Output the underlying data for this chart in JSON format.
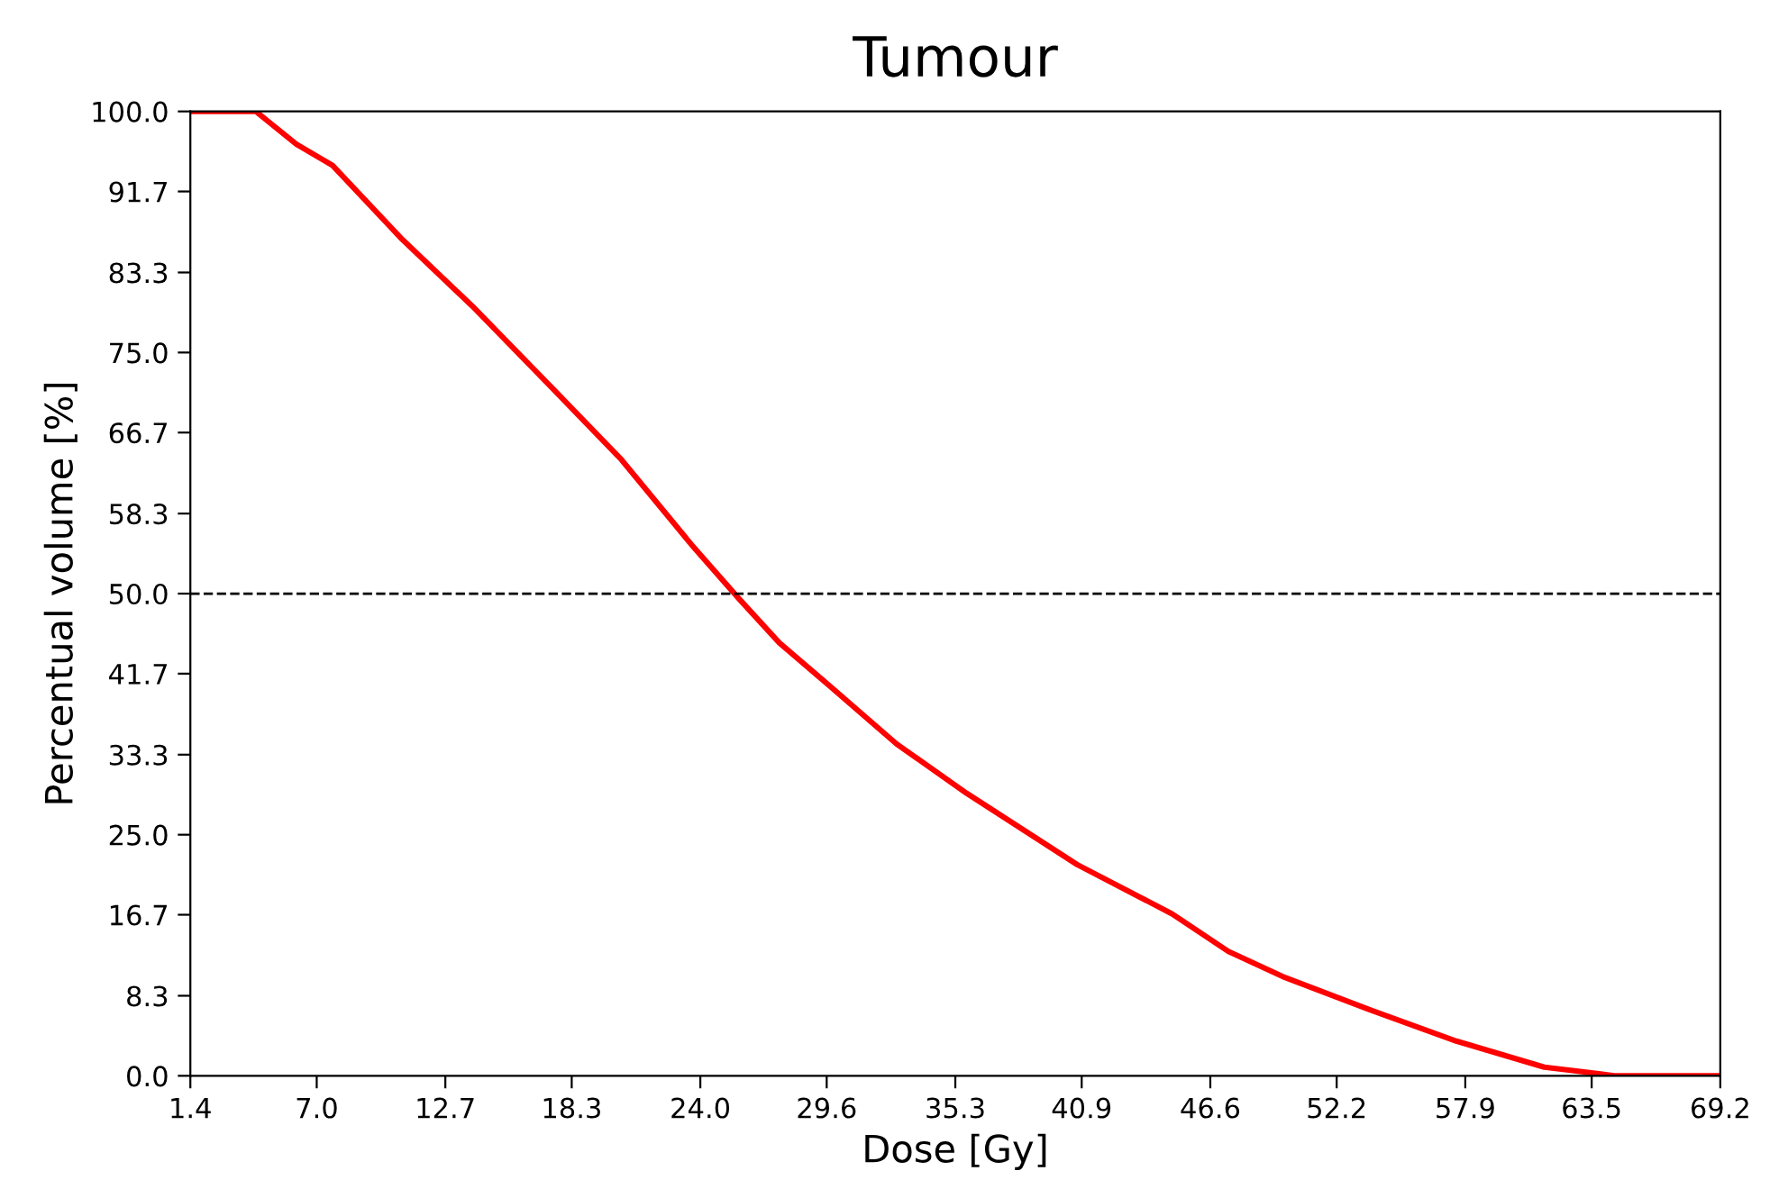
{
  "chart_data": {
    "type": "line",
    "title": "Tumour",
    "xlabel": "Dose [Gy]",
    "ylabel": "Percentual volume [%]",
    "series": [
      {
        "color": "#ff0000",
        "x": [
          1.4,
          4.3,
          6.1,
          7.7,
          10.8,
          13.9,
          17.4,
          20.5,
          23.6,
          25.7,
          27.5,
          29.4,
          32.7,
          35.8,
          40.7,
          44.9,
          47.4,
          49.8,
          53.6,
          57.5,
          61.4,
          63.9,
          64.5,
          69.2
        ],
        "values": [
          100,
          100,
          96.6,
          94.4,
          86.7,
          79.8,
          71.4,
          63.9,
          55.1,
          49.5,
          44.9,
          41.1,
          34.4,
          29.3,
          21.9,
          16.8,
          12.9,
          10.3,
          6.9,
          3.6,
          0.9,
          0.2,
          0,
          0
        ]
      }
    ],
    "xlim": [
      1.4,
      69.2
    ],
    "ylim": [
      0,
      100
    ],
    "xticks": [
      1.4,
      {
        "value": 7.0,
        "label": "7.0"
      },
      12.7,
      18.3,
      {
        "value": 24.0,
        "label": "24.0"
      },
      29.6,
      35.3,
      40.9,
      46.6,
      52.2,
      57.9,
      63.5,
      69.2
    ],
    "yticks": [
      {
        "value": 0,
        "label": "0.0"
      },
      8.3,
      16.7,
      {
        "value": 25,
        "label": "25.0"
      },
      33.3,
      41.7,
      {
        "value": 50,
        "label": "50.0"
      },
      58.3,
      66.7,
      {
        "value": 75,
        "label": "75.0"
      },
      83.3,
      91.7,
      {
        "value": 100,
        "label": "100.0"
      }
    ],
    "ref_lines": [
      {
        "axis": "y",
        "value": 50,
        "color": "#000000",
        "line_style": "dashed"
      }
    ],
    "grid": false,
    "legend": false,
    "marker": "none",
    "line_style": "solid"
  }
}
